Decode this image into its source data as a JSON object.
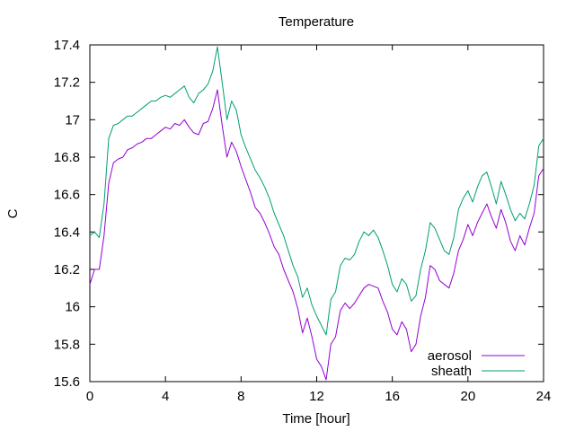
{
  "chart_data": {
    "type": "line",
    "title": "Temperature",
    "xlabel": "Time [hour]",
    "ylabel": "C",
    "xlim": [
      0,
      24
    ],
    "ylim": [
      15.6,
      17.4
    ],
    "xticks": [
      0,
      4,
      8,
      12,
      16,
      20,
      24
    ],
    "yticks": [
      15.6,
      15.8,
      16,
      16.2,
      16.4,
      16.6,
      16.8,
      17,
      17.2,
      17.4
    ],
    "ytick_labels": [
      "15.6",
      "15.8",
      "16",
      "16.2",
      "16.4",
      "16.6",
      "16.8",
      "17",
      "17.2",
      "17.4"
    ],
    "grid": false,
    "legend": "bottom-right",
    "series": [
      {
        "name": "aerosol",
        "color": "#9400d3",
        "x": [
          0,
          0.25,
          0.5,
          0.75,
          1.0,
          1.25,
          1.5,
          1.75,
          2.0,
          2.25,
          2.5,
          2.75,
          3.0,
          3.25,
          3.5,
          3.75,
          4.0,
          4.25,
          4.5,
          4.75,
          5.0,
          5.25,
          5.5,
          5.75,
          6.0,
          6.25,
          6.5,
          6.75,
          7.0,
          7.25,
          7.5,
          7.75,
          8.0,
          8.25,
          8.5,
          8.75,
          9.0,
          9.25,
          9.5,
          9.75,
          10.0,
          10.25,
          10.5,
          10.75,
          11.0,
          11.25,
          11.5,
          11.75,
          12.0,
          12.25,
          12.5,
          12.75,
          13.0,
          13.25,
          13.5,
          13.75,
          14.0,
          14.25,
          14.5,
          14.75,
          15.0,
          15.25,
          15.5,
          15.75,
          16.0,
          16.25,
          16.5,
          16.75,
          17.0,
          17.25,
          17.5,
          17.75,
          18.0,
          18.25,
          18.5,
          18.75,
          19.0,
          19.25,
          19.5,
          19.75,
          20.0,
          20.25,
          20.5,
          20.75,
          21.0,
          21.25,
          21.5,
          21.75,
          22.0,
          22.25,
          22.5,
          22.75,
          23.0,
          23.25,
          23.5,
          23.75,
          24.0
        ],
        "y": [
          16.12,
          16.2,
          16.2,
          16.38,
          16.66,
          16.77,
          16.79,
          16.8,
          16.84,
          16.85,
          16.87,
          16.88,
          16.9,
          16.9,
          16.92,
          16.94,
          16.96,
          16.95,
          16.98,
          16.97,
          17.0,
          16.96,
          16.93,
          16.92,
          16.98,
          16.99,
          17.06,
          17.16,
          16.97,
          16.8,
          16.88,
          16.83,
          16.75,
          16.68,
          16.61,
          16.53,
          16.5,
          16.45,
          16.39,
          16.32,
          16.28,
          16.2,
          16.14,
          16.08,
          15.99,
          15.86,
          15.94,
          15.84,
          15.72,
          15.68,
          15.61,
          15.8,
          15.84,
          15.98,
          16.02,
          15.99,
          16.02,
          16.06,
          16.1,
          16.12,
          16.11,
          16.1,
          16.03,
          15.97,
          15.88,
          15.85,
          15.92,
          15.88,
          15.76,
          15.8,
          15.95,
          16.05,
          16.22,
          16.2,
          16.14,
          16.12,
          16.1,
          16.18,
          16.3,
          16.36,
          16.44,
          16.38,
          16.45,
          16.5,
          16.55,
          16.48,
          16.42,
          16.52,
          16.45,
          16.35,
          16.3,
          16.38,
          16.33,
          16.42,
          16.5,
          16.7,
          16.74
        ]
      },
      {
        "name": "sheath",
        "color": "#009e73",
        "x": [
          0,
          0.25,
          0.5,
          0.75,
          1.0,
          1.25,
          1.5,
          1.75,
          2.0,
          2.25,
          2.5,
          2.75,
          3.0,
          3.25,
          3.5,
          3.75,
          4.0,
          4.25,
          4.5,
          4.75,
          5.0,
          5.25,
          5.5,
          5.75,
          6.0,
          6.25,
          6.5,
          6.75,
          7.0,
          7.25,
          7.5,
          7.75,
          8.0,
          8.25,
          8.5,
          8.75,
          9.0,
          9.25,
          9.5,
          9.75,
          10.0,
          10.25,
          10.5,
          10.75,
          11.0,
          11.25,
          11.5,
          11.75,
          12.0,
          12.25,
          12.5,
          12.75,
          13.0,
          13.25,
          13.5,
          13.75,
          14.0,
          14.25,
          14.5,
          14.75,
          15.0,
          15.25,
          15.5,
          15.75,
          16.0,
          16.25,
          16.5,
          16.75,
          17.0,
          17.25,
          17.5,
          17.75,
          18.0,
          18.25,
          18.5,
          18.75,
          19.0,
          19.25,
          19.5,
          19.75,
          20.0,
          20.25,
          20.5,
          20.75,
          21.0,
          21.25,
          21.5,
          21.75,
          22.0,
          22.25,
          22.5,
          22.75,
          23.0,
          23.25,
          23.5,
          23.75,
          24.0
        ],
        "y": [
          16.38,
          16.4,
          16.37,
          16.55,
          16.9,
          16.97,
          16.98,
          17.0,
          17.02,
          17.02,
          17.04,
          17.06,
          17.08,
          17.1,
          17.1,
          17.12,
          17.13,
          17.12,
          17.14,
          17.16,
          17.18,
          17.12,
          17.09,
          17.14,
          17.16,
          17.19,
          17.26,
          17.39,
          17.2,
          17.0,
          17.1,
          17.05,
          16.92,
          16.85,
          16.79,
          16.73,
          16.69,
          16.64,
          16.58,
          16.5,
          16.44,
          16.38,
          16.3,
          16.22,
          16.16,
          16.05,
          16.1,
          16.01,
          15.95,
          15.9,
          15.85,
          16.04,
          16.08,
          16.22,
          16.26,
          16.25,
          16.28,
          16.35,
          16.4,
          16.38,
          16.41,
          16.37,
          16.3,
          16.22,
          16.12,
          16.08,
          16.15,
          16.12,
          16.03,
          16.06,
          16.2,
          16.3,
          16.45,
          16.42,
          16.36,
          16.3,
          16.28,
          16.37,
          16.52,
          16.58,
          16.62,
          16.56,
          16.64,
          16.7,
          16.72,
          16.64,
          16.55,
          16.67,
          16.6,
          16.52,
          16.46,
          16.5,
          16.47,
          16.55,
          16.65,
          16.86,
          16.9
        ]
      }
    ]
  }
}
